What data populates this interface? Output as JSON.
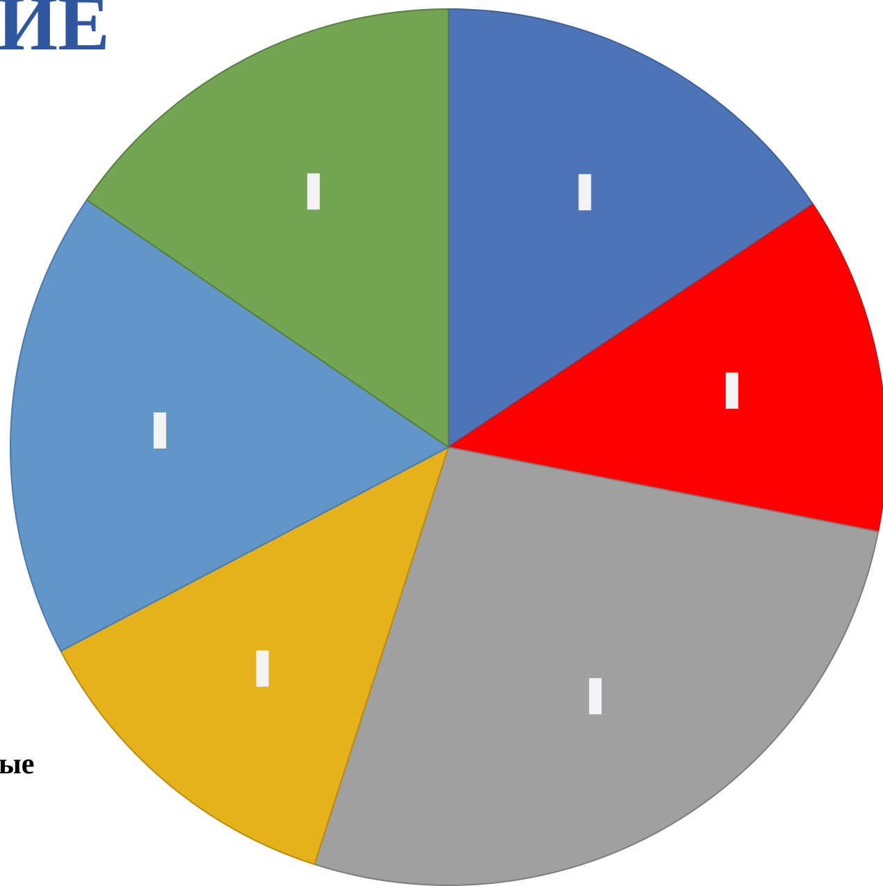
{
  "page": {
    "partial_title": "ИЕ",
    "partial_label": "ые"
  },
  "colors": {
    "title": "#2f57a0",
    "label_box": "#f3f3f6"
  },
  "chart_data": {
    "type": "pie",
    "start_angle_deg": 0,
    "direction": "clockwise",
    "slices": [
      {
        "name": "",
        "value": 16.6,
        "color": "#4e74b8",
        "edge": "#3d5f9c"
      },
      {
        "name": "",
        "value": 13.2,
        "color": "#ff0000",
        "edge": "#c01818"
      },
      {
        "name": "",
        "value": 28.5,
        "color": "#a0a0a0",
        "edge": "#7c7c7c"
      },
      {
        "name": "",
        "value": 13.1,
        "color": "#e6b21c",
        "edge": "#b88b10"
      },
      {
        "name": "",
        "value": 18.3,
        "color": "#6295c8",
        "edge": "#4b7aa8"
      },
      {
        "name": "",
        "value": 16.4,
        "color": "#74a552",
        "edge": "#55803b"
      }
    ]
  }
}
